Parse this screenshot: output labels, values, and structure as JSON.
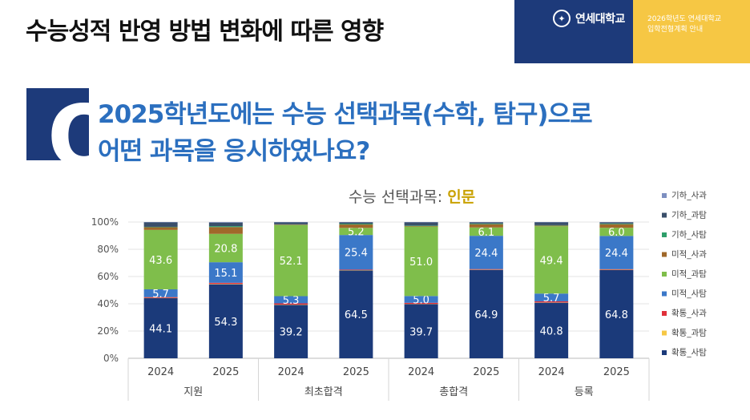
{
  "header": {
    "title": "수능성적 반영 방법 변화에 따른 영향",
    "logo_text": "연세대학교",
    "logo_mark": "✦",
    "info_line1": "2026학년도 연세대학교",
    "info_line2": "입학전형계획 안내"
  },
  "question": {
    "badge": "Q",
    "line1": "2025학년도에는 수능 선택과목(수학, 탐구)으로",
    "line2": "어떤 과목을 응시하였나요?"
  },
  "chart_data": {
    "type": "bar",
    "stacked": true,
    "title_main": "수능 선택과목:",
    "title_highlight": "인문",
    "groups": [
      "지원",
      "최초합격",
      "총합격",
      "등록"
    ],
    "categories": [
      "2024",
      "2025",
      "2024",
      "2025",
      "2024",
      "2025",
      "2024",
      "2025"
    ],
    "ylim": [
      0,
      100
    ],
    "yticks": [
      "0%",
      "20%",
      "40%",
      "60%",
      "80%",
      "100%"
    ],
    "grid": true,
    "legend_position": "right",
    "series": [
      {
        "name": "확통_사탐",
        "color": "#1b3a7a",
        "values": [
          44.1,
          54.3,
          39.2,
          64.5,
          39.7,
          64.9,
          40.8,
          64.8
        ],
        "labels": [
          "44.1",
          "54.3",
          "39.2",
          "64.5",
          "39.7",
          "64.9",
          "40.8",
          "64.8"
        ]
      },
      {
        "name": "확통_과탐",
        "color": "#f6c744",
        "values": [
          0.2,
          0.3,
          0.2,
          0.2,
          0.2,
          0.2,
          0.2,
          0.2
        ],
        "labels": [
          "",
          "",
          "",
          "",
          "",
          "",
          "",
          ""
        ]
      },
      {
        "name": "확통_사과",
        "color": "#e0303a",
        "values": [
          0.6,
          0.8,
          0.9,
          0.4,
          0.8,
          0.4,
          0.8,
          0.4
        ],
        "labels": [
          "",
          "",
          "",
          "",
          "",
          "",
          "",
          ""
        ]
      },
      {
        "name": "미적_사탐",
        "color": "#3b78c8",
        "values": [
          5.7,
          15.1,
          5.3,
          25.4,
          5.0,
          24.4,
          5.7,
          24.4
        ],
        "labels": [
          "5.7",
          "15.1",
          "5.3",
          "25.4",
          "5.0",
          "24.4",
          "5.7",
          "24.4"
        ]
      },
      {
        "name": "미적_과탐",
        "color": "#7fbe4b",
        "values": [
          43.6,
          20.8,
          52.1,
          5.2,
          51.0,
          6.1,
          49.4,
          6.0
        ],
        "labels": [
          "43.6",
          "20.8",
          "52.1",
          "5.2",
          "51.0",
          "6.1",
          "49.4",
          "6.0"
        ]
      },
      {
        "name": "미적_사과",
        "color": "#a0682a",
        "values": [
          2.0,
          5.0,
          0.4,
          2.5,
          0.4,
          2.4,
          0.5,
          2.6
        ],
        "labels": [
          "",
          "",
          "",
          "",
          "",
          "",
          "",
          ""
        ]
      },
      {
        "name": "기하_사탐",
        "color": "#2e9e6a",
        "values": [
          0.3,
          0.7,
          0.2,
          0.6,
          0.3,
          0.5,
          0.3,
          0.5
        ],
        "labels": [
          "",
          "",
          "",
          "",
          "",
          "",
          "",
          ""
        ]
      },
      {
        "name": "기하_과탐",
        "color": "#3a4f6a",
        "values": [
          3.2,
          2.6,
          1.4,
          1.0,
          2.3,
          0.9,
          2.0,
          0.9
        ],
        "labels": [
          "",
          "",
          "",
          "",
          "",
          "",
          "",
          ""
        ]
      },
      {
        "name": "기하_사과",
        "color": "#7d8fc0",
        "values": [
          0.3,
          0.4,
          0.3,
          0.2,
          0.3,
          0.2,
          0.3,
          0.2
        ],
        "labels": [
          "",
          "",
          "",
          "",
          "",
          "",
          "",
          ""
        ]
      }
    ],
    "legend_order": [
      "기하_사과",
      "기하_과탐",
      "기하_사탐",
      "미적_사과",
      "미적_과탐",
      "미적_사탐",
      "확통_사과",
      "확통_과탐",
      "확통_사탐"
    ]
  }
}
